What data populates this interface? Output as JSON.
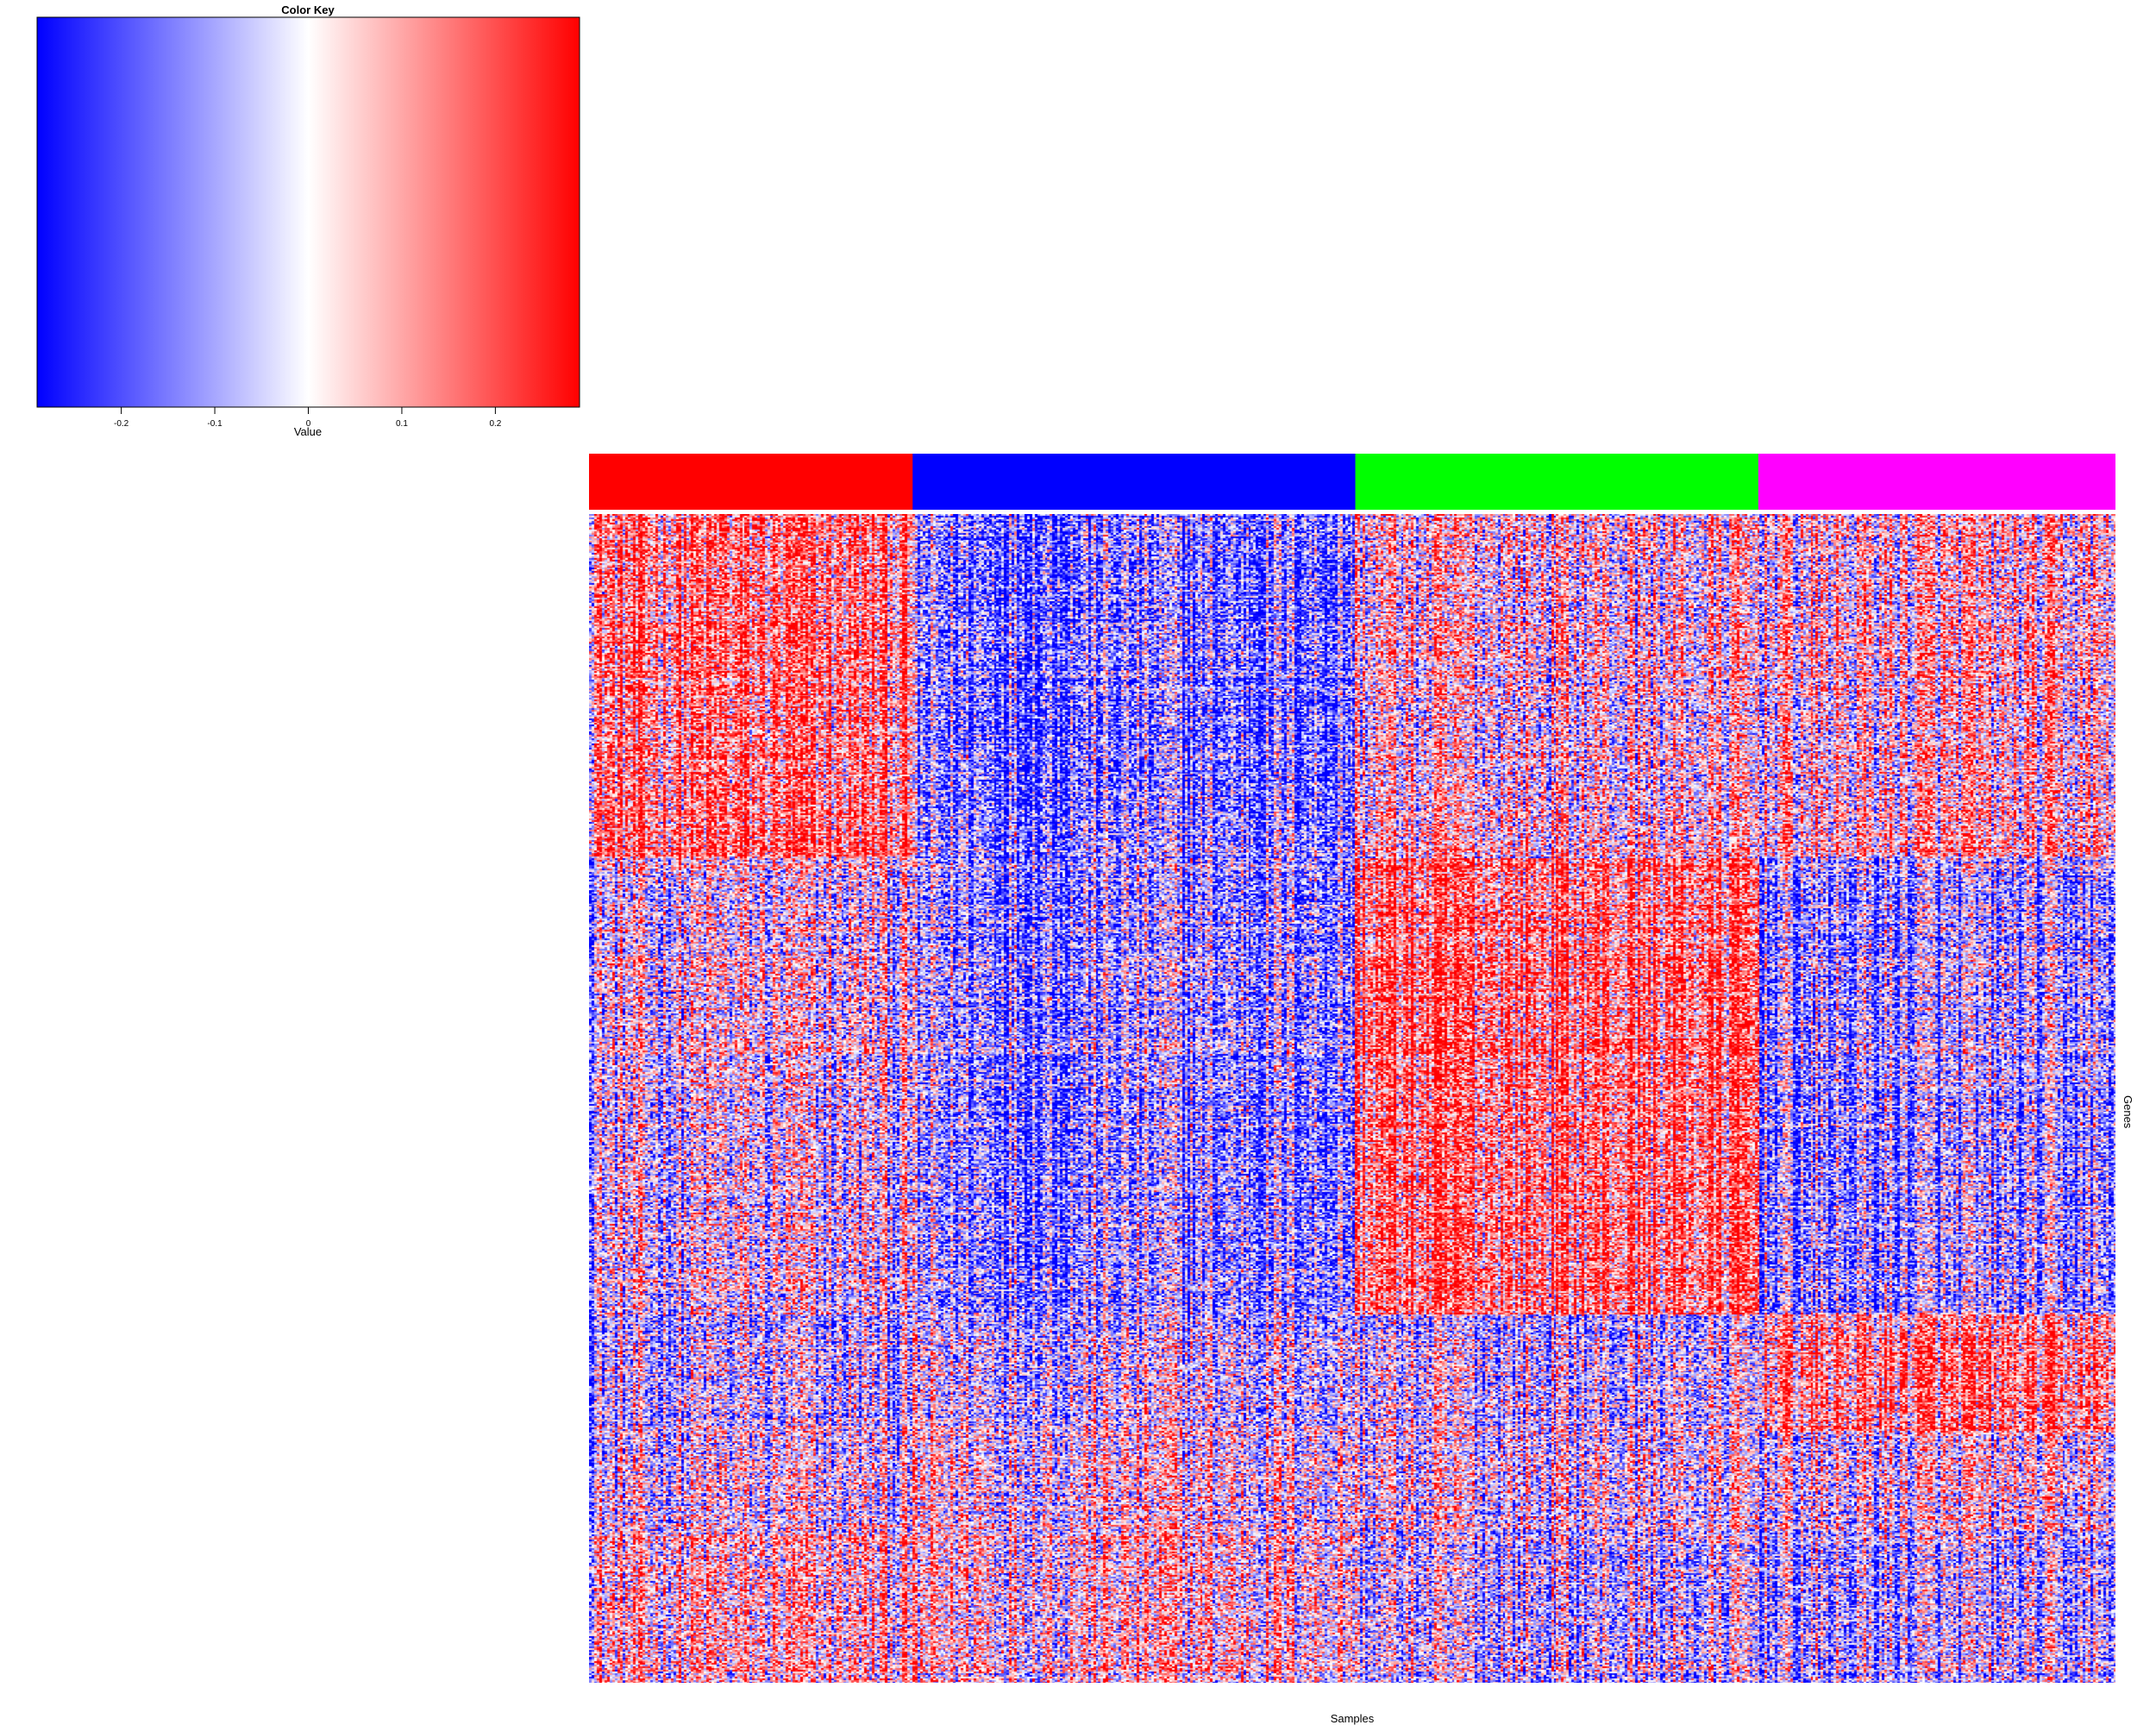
{
  "chart_data": {
    "type": "heatmap",
    "color_key": {
      "title": "Color Key",
      "xlabel": "Value",
      "ticks": [
        "-0.2",
        "-0.1",
        "0",
        "0.1",
        "0.2"
      ],
      "tick_values": [
        -0.2,
        -0.1,
        0,
        0.1,
        0.2
      ],
      "range": [
        -0.29,
        0.29
      ],
      "low_color": "#0000ff",
      "mid_color": "#ffffff",
      "high_color": "#ff0000"
    },
    "xlabel": "Samples",
    "ylabel": "Genes",
    "column_groups": [
      {
        "color": "#ff0000",
        "fraction": 0.212
      },
      {
        "color": "#0000ff",
        "fraction": 0.29
      },
      {
        "color": "#00ff00",
        "fraction": 0.264
      },
      {
        "color": "#ff00ff",
        "fraction": 0.234
      }
    ],
    "row_blocks": [
      {
        "fraction": 0.295,
        "means": [
          0.45,
          -0.5,
          0.05,
          0.1
        ]
      },
      {
        "fraction": 0.39,
        "means": [
          -0.05,
          -0.35,
          0.55,
          -0.35
        ]
      },
      {
        "fraction": 0.1,
        "means": [
          -0.2,
          -0.1,
          -0.15,
          0.45
        ]
      },
      {
        "fraction": 0.085,
        "means": [
          -0.1,
          0.05,
          -0.05,
          -0.05
        ]
      },
      {
        "fraction": 0.13,
        "means": [
          0.15,
          0.15,
          -0.2,
          -0.3
        ]
      }
    ],
    "grid": false,
    "legend_position": "top-left"
  }
}
